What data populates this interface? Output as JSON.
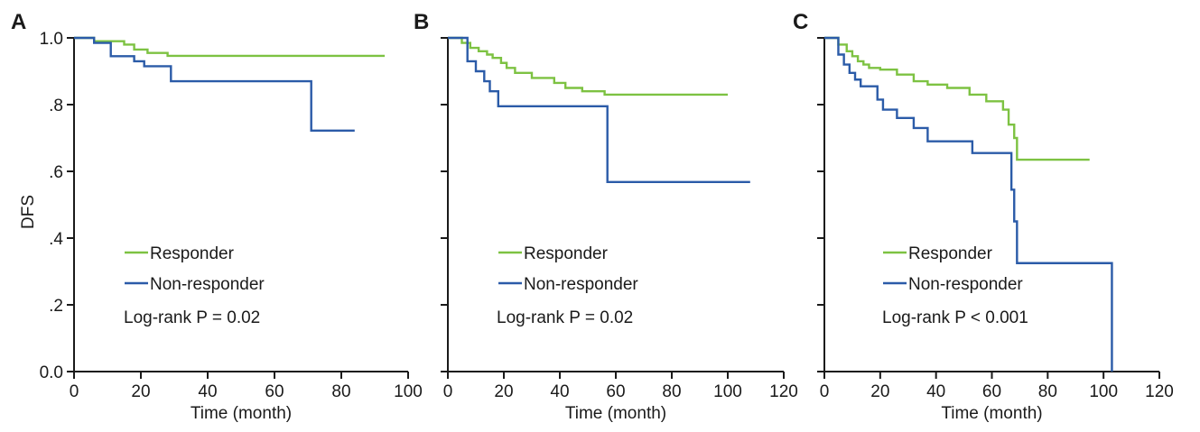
{
  "colors": {
    "responder": "#7dc242",
    "non_responder": "#2b5ba8",
    "axis": "#1a1a1a"
  },
  "chart_data": [
    {
      "type": "line",
      "panel_label": "A",
      "xlabel": "Time (month)",
      "ylabel": "DFS",
      "xlim": [
        0,
        100
      ],
      "ylim": [
        0,
        1
      ],
      "x_ticks": [
        "0",
        "20",
        "40",
        "60",
        "80",
        "100"
      ],
      "y_ticks": [
        "0.0",
        ".2",
        ".4",
        ".6",
        ".8",
        "1.0"
      ],
      "show_y_tick_labels": true,
      "legend": [
        "Responder",
        "Non-responder"
      ],
      "annotation": "Log-rank P = 0.02",
      "series": [
        {
          "name": "Responder",
          "step": true,
          "x": [
            0,
            6,
            15,
            18,
            22,
            28,
            93
          ],
          "y": [
            1.0,
            0.99,
            0.98,
            0.965,
            0.955,
            0.946,
            0.946
          ]
        },
        {
          "name": "Non-responder",
          "step": true,
          "x": [
            0,
            6,
            11,
            18,
            21,
            29,
            71,
            84
          ],
          "y": [
            1.0,
            0.985,
            0.945,
            0.93,
            0.915,
            0.87,
            0.722,
            0.722
          ]
        }
      ]
    },
    {
      "type": "line",
      "panel_label": "B",
      "xlabel": "Time (month)",
      "ylabel": "",
      "xlim": [
        0,
        120
      ],
      "ylim": [
        0,
        1
      ],
      "x_ticks": [
        "0",
        "20",
        "40",
        "60",
        "80",
        "100",
        "120"
      ],
      "y_ticks": [
        "0.0",
        ".2",
        ".4",
        ".6",
        ".8",
        "1.0"
      ],
      "show_y_tick_labels": false,
      "legend": [
        "Responder",
        "Non-responder"
      ],
      "annotation": "Log-rank P = 0.02",
      "series": [
        {
          "name": "Responder",
          "step": true,
          "x": [
            0,
            5,
            8,
            11,
            14,
            16,
            19,
            21,
            24,
            30,
            38,
            42,
            48,
            56,
            100
          ],
          "y": [
            1.0,
            0.985,
            0.97,
            0.96,
            0.95,
            0.94,
            0.925,
            0.91,
            0.895,
            0.88,
            0.865,
            0.85,
            0.84,
            0.83,
            0.83
          ]
        },
        {
          "name": "Non-responder",
          "step": true,
          "x": [
            0,
            7,
            10,
            13,
            15,
            18,
            57,
            108
          ],
          "y": [
            1.0,
            0.93,
            0.9,
            0.87,
            0.84,
            0.795,
            0.568,
            0.568
          ]
        }
      ]
    },
    {
      "type": "line",
      "panel_label": "C",
      "xlabel": "Time (month)",
      "ylabel": "",
      "xlim": [
        0,
        120
      ],
      "ylim": [
        0,
        1
      ],
      "x_ticks": [
        "0",
        "20",
        "40",
        "60",
        "80",
        "100",
        "120"
      ],
      "y_ticks": [
        "0.0",
        ".2",
        ".4",
        ".6",
        ".8",
        "1.0"
      ],
      "show_y_tick_labels": false,
      "legend": [
        "Responder",
        "Non-responder"
      ],
      "annotation": "Log-rank P < 0.001",
      "series": [
        {
          "name": "Responder",
          "step": true,
          "x": [
            0,
            5,
            8,
            10,
            12,
            14,
            16,
            20,
            26,
            32,
            37,
            44,
            52,
            58,
            64,
            66,
            68,
            69,
            95
          ],
          "y": [
            1.0,
            0.98,
            0.96,
            0.945,
            0.93,
            0.92,
            0.91,
            0.905,
            0.89,
            0.87,
            0.86,
            0.85,
            0.83,
            0.81,
            0.785,
            0.74,
            0.7,
            0.635,
            0.635
          ]
        },
        {
          "name": "Non-responder",
          "step": true,
          "x": [
            0,
            5,
            7,
            9,
            11,
            13,
            19,
            21,
            26,
            32,
            37,
            53,
            67,
            68,
            69,
            103
          ],
          "y": [
            1.0,
            0.95,
            0.92,
            0.895,
            0.875,
            0.855,
            0.815,
            0.785,
            0.76,
            0.73,
            0.69,
            0.655,
            0.545,
            0.45,
            0.325,
            0.0
          ]
        }
      ]
    }
  ]
}
